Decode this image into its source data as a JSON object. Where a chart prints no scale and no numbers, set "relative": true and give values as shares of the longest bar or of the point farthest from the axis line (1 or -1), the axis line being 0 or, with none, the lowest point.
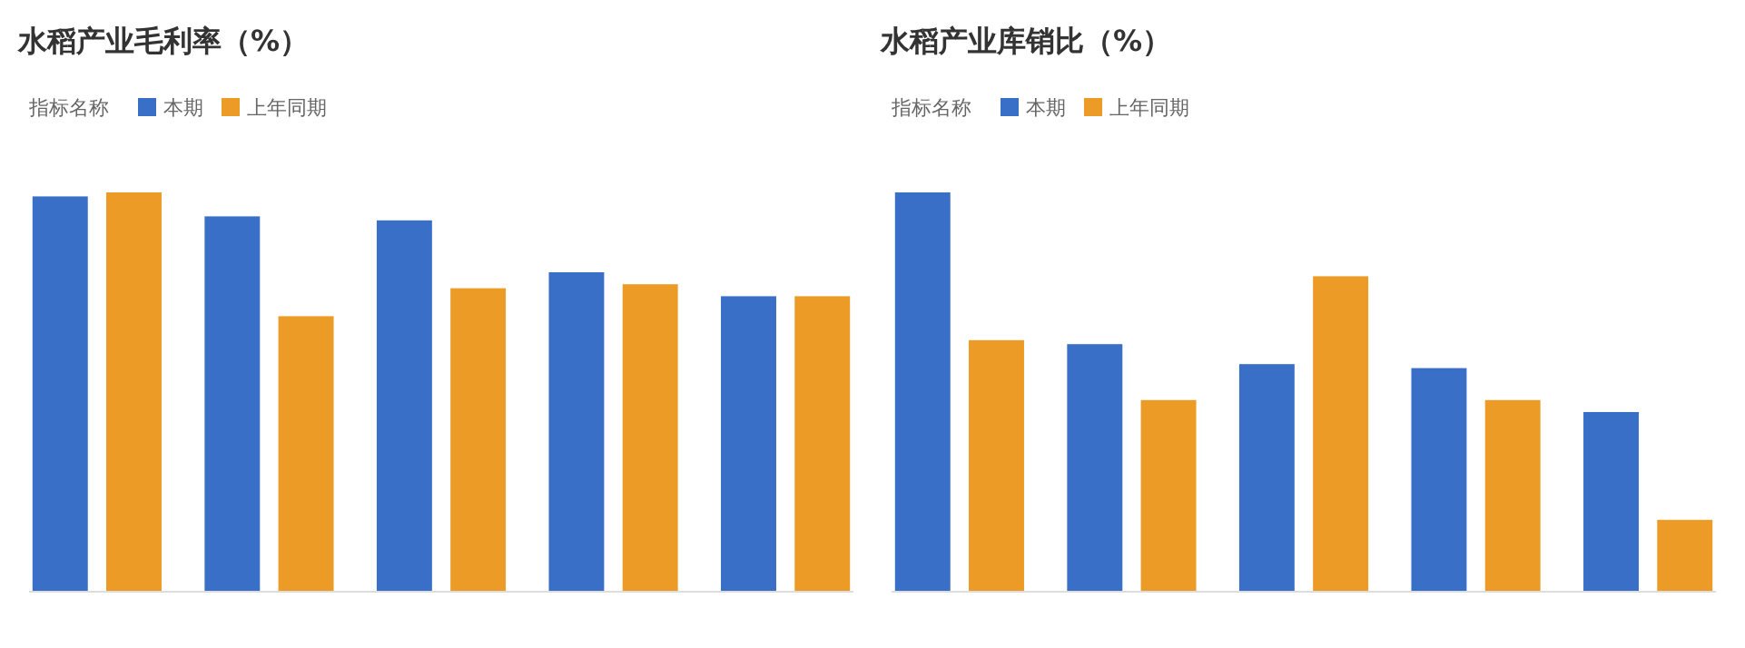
{
  "chart_data": [
    {
      "type": "bar",
      "title": "水稻产业毛利率（%）",
      "legend_title": "指标名称",
      "legend": "top left",
      "relative": true,
      "categories": [
        null,
        null,
        null,
        null,
        null
      ],
      "series": [
        {
          "name": "本期",
          "color": "#3a6fc8",
          "values": [
            0.99,
            0.94,
            0.93,
            0.8,
            0.74
          ]
        },
        {
          "name": "上年同期",
          "color": "#ec9c26",
          "values": [
            1,
            0.69,
            0.76,
            0.77,
            0.74
          ]
        }
      ]
    },
    {
      "type": "bar",
      "title": "水稻产业库销比（%）",
      "legend_title": "指标名称",
      "legend": "top left",
      "relative": true,
      "categories": [
        null,
        null,
        null,
        null,
        null
      ],
      "series": [
        {
          "name": "本期",
          "color": "#3a6fc8",
          "values": [
            1,
            0.62,
            0.57,
            0.56,
            0.45
          ]
        },
        {
          "name": "上年同期",
          "color": "#ec9c26",
          "values": [
            0.63,
            0.48,
            0.79,
            0.48,
            0.18
          ]
        }
      ]
    }
  ]
}
